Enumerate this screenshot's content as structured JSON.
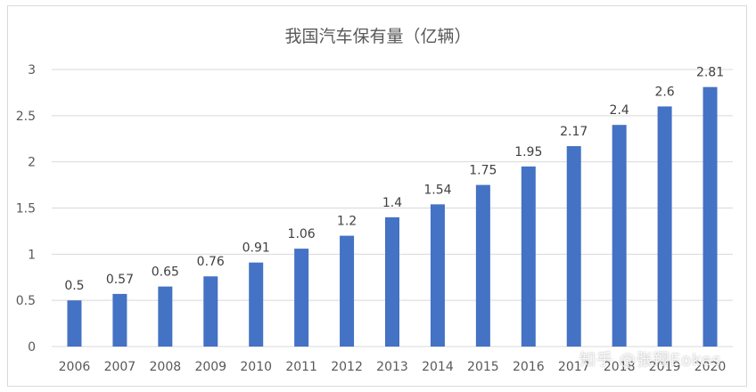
{
  "chart_data": {
    "type": "bar",
    "title": "我国汽车保有量（亿辆）",
    "categories": [
      "2006",
      "2007",
      "2008",
      "2009",
      "2010",
      "2011",
      "2012",
      "2013",
      "2014",
      "2015",
      "2016",
      "2017",
      "2018",
      "2019",
      "2020"
    ],
    "values": [
      0.5,
      0.57,
      0.65,
      0.76,
      0.91,
      1.06,
      1.2,
      1.4,
      1.54,
      1.75,
      1.95,
      2.17,
      2.4,
      2.6,
      2.81
    ],
    "value_labels": [
      "0.5",
      "0.57",
      "0.65",
      "0.76",
      "0.91",
      "1.06",
      "1.2",
      "1.4",
      "1.54",
      "1.75",
      "1.95",
      "2.17",
      "2.4",
      "2.6",
      "2.81"
    ],
    "yticks": [
      "0",
      "0.5",
      "1",
      "1.5",
      "2",
      "2.5",
      "3"
    ],
    "ylim": [
      0,
      3
    ],
    "grid": true,
    "bar_color": "#4472c4",
    "grid_color": "#d9d9d9"
  },
  "watermark": "知乎 @张翔Eokes"
}
